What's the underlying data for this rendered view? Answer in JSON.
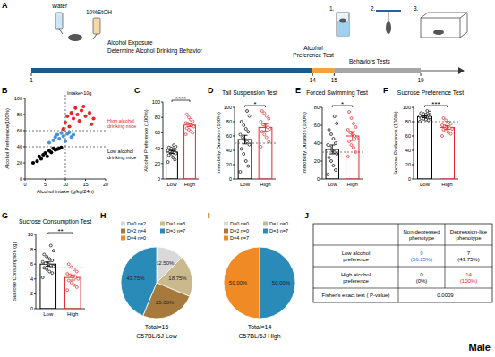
{
  "timeline": {
    "panel": "A",
    "days": [
      1,
      14,
      15,
      19
    ],
    "segments": [
      {
        "from": 1,
        "to": 14,
        "color": "#1f5a85"
      },
      {
        "from": 14,
        "to": 15,
        "color": "#f2a33a"
      },
      {
        "from": 15,
        "to": 19,
        "color": "#a6a6a6"
      }
    ],
    "water": "Water",
    "ethanol": "10%EtOH",
    "exposure": [
      "Alcohol Exposure",
      "Determine Alcohol Drinking Behavior"
    ],
    "preference_test": [
      "Alcohol",
      "Preference Test"
    ],
    "behaviors": "Behaviors Tests",
    "test_numbers": [
      "1.",
      "2.",
      "3."
    ]
  },
  "chart_data": [
    {
      "type": "scatter",
      "panel": "B",
      "xlabel": "Alcohol intake (g/kg/24h)",
      "ylabel": "Alcohol Preference(100%)",
      "xlim": [
        0,
        20
      ],
      "xticks": [
        0,
        5,
        10,
        15,
        20
      ],
      "ylim": [
        0,
        100
      ],
      "yticks": [
        0,
        20,
        40,
        60,
        80,
        100
      ],
      "series": [
        {
          "color": "#000000",
          "x": [
            2,
            3,
            3.5,
            4,
            4.5,
            5,
            5.5,
            6,
            6.5,
            7,
            7.5,
            8,
            8.5,
            9
          ],
          "values": [
            20,
            22,
            28,
            25,
            30,
            32,
            28,
            35,
            33,
            38,
            36,
            37,
            38,
            39
          ]
        },
        {
          "color": "#4a90d9",
          "x": [
            6,
            7,
            7.5,
            8,
            8.5,
            9,
            9.5,
            10,
            10.5,
            11,
            12,
            11.5
          ],
          "values": [
            45,
            48,
            52,
            55,
            50,
            57,
            53,
            47,
            56,
            58,
            55,
            52
          ]
        },
        {
          "color": "#e8262a",
          "x": [
            9.5,
            10,
            10.5,
            11,
            11.5,
            12,
            12.5,
            13,
            13.5,
            14,
            14.5,
            15,
            16,
            16.5,
            17
          ],
          "values": [
            62,
            70,
            78,
            65,
            82,
            75,
            88,
            80,
            72,
            85,
            90,
            78,
            82,
            68,
            75
          ]
        }
      ],
      "vline": {
        "value": 10,
        "label": "Intake>10g"
      },
      "hlines": [
        {
          "value": 60,
          "label": [
            "High alcohol",
            "drinking mice"
          ],
          "color": "#e8262a"
        },
        {
          "value": 40,
          "label": [
            "Low alcohol",
            "drinking mice"
          ],
          "color": "#000000"
        }
      ]
    },
    {
      "type": "bar",
      "panel": "C",
      "ylabel": "Alcohol Preference (100%)",
      "categories": [
        "Low",
        "High"
      ],
      "values": [
        35,
        70
      ],
      "errors": [
        2,
        2
      ],
      "colors": [
        "#000000",
        "#e8262a"
      ],
      "ylim": [
        0,
        100
      ],
      "yticks": [
        0,
        20,
        40,
        60,
        80,
        100
      ],
      "annotations": [
        "****"
      ],
      "points": [
        [
          22,
          25,
          28,
          30,
          31,
          33,
          34,
          35,
          36,
          37,
          38,
          39,
          40,
          41,
          42,
          44
        ],
        [
          58,
          60,
          62,
          64,
          66,
          68,
          70,
          71,
          72,
          73,
          75,
          77,
          80,
          84
        ]
      ]
    },
    {
      "type": "bar",
      "panel": "D",
      "title": "Tail Suspension Test",
      "ylabel": "Immobility Duration (100%)",
      "categories": [
        "Low",
        "High"
      ],
      "values": [
        55,
        72
      ],
      "errors": [
        6,
        5
      ],
      "colors": [
        "#000000",
        "#e8262a"
      ],
      "ylim": [
        0,
        100
      ],
      "yticks": [
        0,
        20,
        40,
        60,
        80,
        100
      ],
      "threshold": 50,
      "annotations": [
        "*"
      ],
      "points": [
        [
          10,
          18,
          25,
          35,
          42,
          48,
          52,
          55,
          58,
          62,
          66,
          70,
          75,
          80,
          88,
          95
        ],
        [
          45,
          52,
          58,
          62,
          66,
          70,
          72,
          74,
          76,
          80,
          84,
          88,
          92,
          95
        ]
      ]
    },
    {
      "type": "bar",
      "panel": "E",
      "title": "Forced Swimming Test",
      "ylabel": "Immobility Duration (100%)",
      "categories": [
        "Low",
        "High"
      ],
      "values": [
        33,
        48
      ],
      "errors": [
        5,
        5
      ],
      "colors": [
        "#000000",
        "#e8262a"
      ],
      "ylim": [
        0,
        80
      ],
      "yticks": [
        0,
        20,
        40,
        60,
        80
      ],
      "threshold": 30,
      "annotations": [
        "*"
      ],
      "points": [
        [
          5,
          10,
          15,
          20,
          24,
          28,
          30,
          32,
          35,
          38,
          40,
          45,
          50,
          55,
          62,
          70
        ],
        [
          25,
          30,
          35,
          38,
          42,
          45,
          48,
          50,
          52,
          55,
          58,
          62,
          68,
          75
        ]
      ]
    },
    {
      "type": "bar",
      "panel": "F",
      "title": "Sucrose Preference Test",
      "ylabel": "Sucrose Preference (100%)",
      "categories": [
        "Low",
        "High"
      ],
      "values": [
        87,
        72
      ],
      "errors": [
        1.2,
        2.5
      ],
      "colors": [
        "#000000",
        "#e8262a"
      ],
      "ylim": [
        0,
        100
      ],
      "yticks": [
        0,
        20,
        40,
        60,
        80,
        100
      ],
      "threshold": 80,
      "annotations": [
        "***"
      ],
      "points": [
        [
          80,
          82,
          83,
          84,
          85,
          86,
          86,
          87,
          88,
          88,
          89,
          90,
          91,
          92,
          93,
          95
        ],
        [
          60,
          63,
          65,
          67,
          69,
          70,
          71,
          72,
          74,
          75,
          77,
          79,
          82,
          85
        ]
      ]
    },
    {
      "type": "bar",
      "panel": "G",
      "title": "Sucrose Consumption Test",
      "ylabel": "Sucrose Consumption (g)",
      "categories": [
        "Low",
        "High"
      ],
      "values": [
        6,
        4.2
      ],
      "errors": [
        0.3,
        0.35
      ],
      "colors": [
        "#000000",
        "#e8262a"
      ],
      "ylim": [
        0,
        10
      ],
      "yticks": [
        0,
        2,
        4,
        6,
        8,
        10
      ],
      "threshold": 5.5,
      "annotations": [
        "**"
      ],
      "points": [
        [
          4.2,
          4.8,
          5.0,
          5.3,
          5.5,
          5.7,
          5.8,
          6.0,
          6.1,
          6.3,
          6.5,
          6.7,
          7.0,
          7.3,
          7.8,
          8.5
        ],
        [
          2.5,
          2.9,
          3.2,
          3.5,
          3.8,
          4.0,
          4.2,
          4.3,
          4.5,
          4.7,
          5.0,
          5.3,
          5.6,
          6.0
        ]
      ]
    },
    {
      "type": "pie",
      "panel": "H",
      "categories": [
        "D=0 n=2",
        "D=1 n=3",
        "D=2 n=4",
        "D=3 n=7",
        "D=4 n=0"
      ],
      "values": [
        12.5,
        18.75,
        25,
        43.75,
        0
      ],
      "value_labels": [
        "12.50%",
        "18.75%",
        "25.00%",
        "43.75%",
        null
      ],
      "data_labels": true,
      "colors": [
        "#d9d9d9",
        "#c9b98c",
        "#a57a3c",
        "#2b8bb8",
        "#f08a24"
      ],
      "annotations": [
        "Total=16",
        "C57BL/6J Low"
      ]
    },
    {
      "type": "pie",
      "panel": "I",
      "categories": [
        "D=0 n=0",
        "D=1 n=0",
        "D=2 n=0",
        "D=3 n=7",
        "D=4 n=7"
      ],
      "values": [
        0,
        0,
        0,
        50,
        50
      ],
      "value_labels": [
        null,
        null,
        null,
        "50.00%",
        "50.00%"
      ],
      "data_labels": true,
      "colors": [
        "#d9d9d9",
        "#c9b98c",
        "#a57a3c",
        "#2b8bb8",
        "#f08a24"
      ],
      "annotations": [
        "Total=14",
        "C57BL/6J High"
      ]
    }
  ],
  "table": {
    "panel": "J",
    "header": [
      null,
      [
        "Non-depressed",
        "phenotype"
      ],
      [
        "Depression-like",
        "phenotype"
      ]
    ],
    "rows": [
      [
        [
          "Low alcohol",
          "preference"
        ],
        [
          "9",
          "(56.25%)"
        ],
        [
          "7",
          "(43.75%)"
        ]
      ],
      [
        [
          "High alcohol",
          "preference"
        ],
        [
          "0",
          "(0%)"
        ],
        [
          "14",
          "(100%)"
        ]
      ],
      [
        [
          "Fisher's exact test ( P-value)"
        ],
        [
          "0.0009"
        ]
      ]
    ]
  },
  "sex_label": "Male"
}
